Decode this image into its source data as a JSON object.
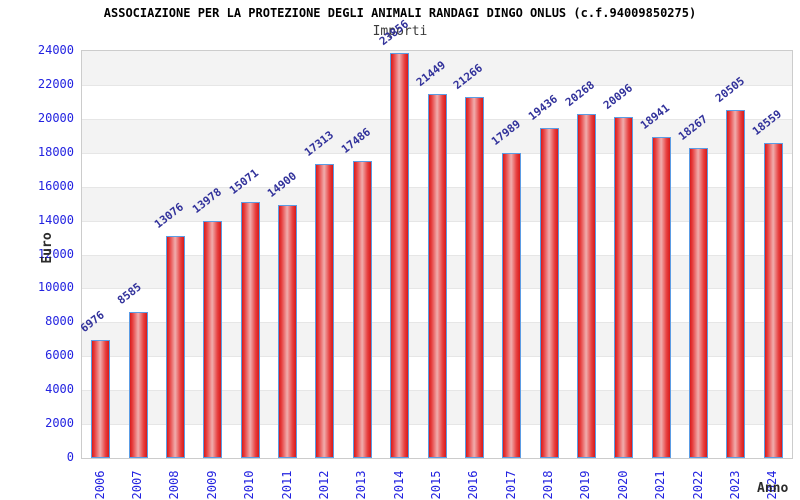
{
  "header": {
    "title": "ASSOCIAZIONE PER LA PROTEZIONE DEGLI ANIMALI RANDAGI DINGO ONLUS (c.f.94009850275)",
    "subtitle": "Importi"
  },
  "axes": {
    "y_title": "Euro",
    "x_title": "Anno"
  },
  "chart_data": {
    "type": "bar",
    "title": "ASSOCIAZIONE PER LA PROTEZIONE DEGLI ANIMALI RANDAGI DINGO ONLUS (c.f.94009850275)",
    "subtitle": "Importi",
    "xlabel": "Anno",
    "ylabel": "Euro",
    "categories": [
      "2006",
      "2007",
      "2008",
      "2009",
      "2010",
      "2011",
      "2012",
      "2013",
      "2014",
      "2015",
      "2016",
      "2017",
      "2018",
      "2019",
      "2020",
      "2021",
      "2022",
      "2023",
      "2024"
    ],
    "values": [
      6976,
      8585,
      13076,
      13978,
      15071,
      14900,
      17313,
      17486,
      23856,
      21449,
      21266,
      17989,
      19436,
      20268,
      20096,
      18941,
      18267,
      20505,
      18559
    ],
    "ylim": [
      0,
      24000
    ],
    "ytick_step": 2000,
    "yticks": [
      0,
      2000,
      4000,
      6000,
      8000,
      10000,
      12000,
      14000,
      16000,
      18000,
      20000,
      22000,
      24000
    ],
    "grid": "alternating-horizontal-bands",
    "legend_position": "none",
    "bar_labels_rotated": true,
    "x_labels_rotated_90": true
  },
  "colors": {
    "tick_label": "#2323e0",
    "value_label": "#32329b",
    "bar_edge_red": "#d81b1b",
    "bar_center_pink": "#f0adad",
    "bar_border_blue": "#5b9ce4",
    "band_gray": "#f3f3f3",
    "band_white": "#ffffff",
    "band_line": "#e6e6e6",
    "plot_border": "#cccccc",
    "title_color": "#000000",
    "subtitle_color": "#3c3c3c",
    "axis_title_color": "#2b2b2b"
  }
}
